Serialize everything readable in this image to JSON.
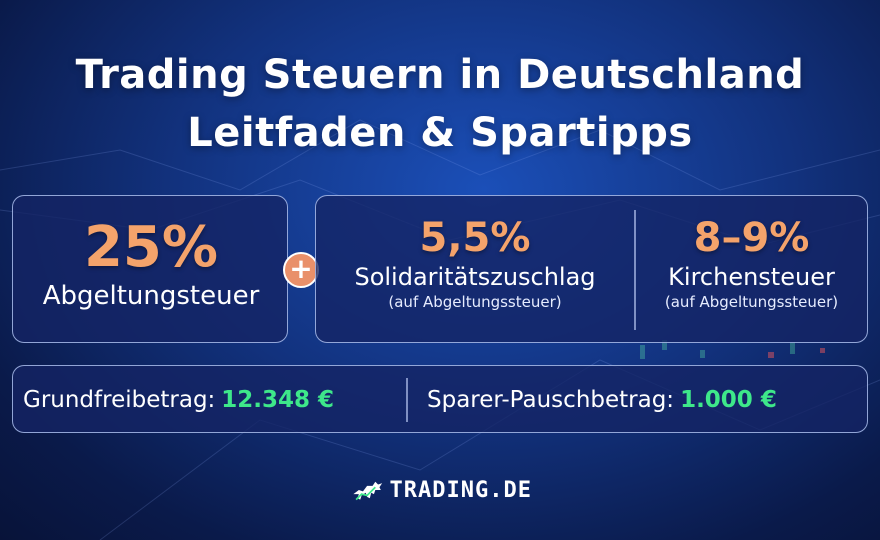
{
  "title": {
    "line1": "Trading Steuern in Deutschland",
    "line2": "Leitfaden & Spartipps"
  },
  "taxes": {
    "main": {
      "percent": "25%",
      "label": "Abgeltungsteuer"
    },
    "plus_symbol": "+",
    "soli": {
      "percent": "5,5%",
      "label": "Solidaritätszuschlag",
      "note": "(auf Abgeltungssteuer)"
    },
    "church": {
      "percent": "8–9%",
      "label": "Kirchensteuer",
      "note": "(auf Abgeltungssteuer)"
    }
  },
  "allowances": {
    "basic": {
      "label": "Grundfreibetrag:",
      "value": "12.348 €"
    },
    "saver": {
      "label": "Sparer-Pauschbetrag:",
      "value": "1.000 €"
    }
  },
  "brand": {
    "name": "TRADING.DE",
    "icon": "bull-icon"
  },
  "colors": {
    "background": "#12327e",
    "accent_orange": "#f4a36b",
    "accent_green": "#3ee88a",
    "plus_badge": "#e9906a"
  }
}
